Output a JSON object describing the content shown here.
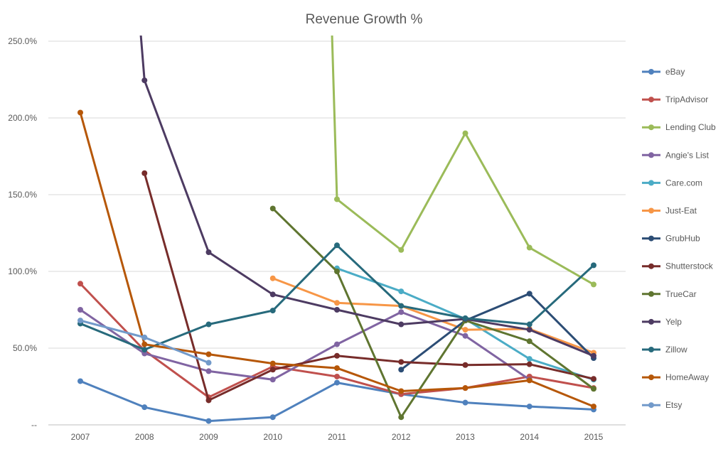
{
  "chart_data": {
    "type": "line",
    "title": "Revenue Growth %",
    "xlabel": "",
    "ylabel": "",
    "categories": [
      "2007",
      "2008",
      "2009",
      "2010",
      "2011",
      "2012",
      "2013",
      "2014",
      "2015"
    ],
    "ylim": [
      0,
      250
    ],
    "yticks": [
      {
        "value": 0,
        "label": "--"
      },
      {
        "value": 50,
        "label": "50.0%"
      },
      {
        "value": 100,
        "label": "100.0%"
      },
      {
        "value": 150,
        "label": "150.0%"
      },
      {
        "value": 200,
        "label": "200.0%"
      },
      {
        "value": 250,
        "label": "250.0%"
      }
    ],
    "grid": "horizontal",
    "legend_position": "right",
    "series": [
      {
        "name": "eBay",
        "color": "#4F81BD",
        "values": [
          28.5,
          11.5,
          2.5,
          5.0,
          27.5,
          20.0,
          14.5,
          12.0,
          10.0
        ]
      },
      {
        "name": "TripAdvisor",
        "color": "#C0504D",
        "values": [
          92.0,
          48.5,
          18.0,
          38.0,
          31.5,
          20.0,
          24.0,
          31.5,
          24.0
        ]
      },
      {
        "name": "Lending Club",
        "color": "#9BBB59",
        "values": [
          null,
          null,
          null,
          null,
          147.0,
          114.0,
          190.0,
          115.5,
          91.5
        ]
      },
      {
        "name": "Angie's List",
        "color": "#8064A2",
        "values": [
          75.0,
          46.5,
          35.0,
          29.5,
          52.5,
          73.5,
          58.0,
          29.5,
          null
        ]
      },
      {
        "name": "Care.com",
        "color": "#4BACC6",
        "values": [
          null,
          null,
          null,
          null,
          102.0,
          87.0,
          69.0,
          43.0,
          29.5
        ]
      },
      {
        "name": "Just-Eat",
        "color": "#F79646",
        "values": [
          null,
          null,
          null,
          95.5,
          79.5,
          77.5,
          62.0,
          62.5,
          47.0
        ]
      },
      {
        "name": "GrubHub",
        "color": "#2C4D75",
        "values": [
          null,
          null,
          null,
          null,
          null,
          36.0,
          68.0,
          85.5,
          43.5
        ]
      },
      {
        "name": "Shutterstock",
        "color": "#772C2A",
        "values": [
          null,
          164.0,
          16.0,
          36.0,
          45.0,
          41.0,
          39.0,
          39.5,
          30.0
        ]
      },
      {
        "name": "TrueCar",
        "color": "#5F7530",
        "values": [
          null,
          null,
          null,
          141.0,
          100.0,
          5.0,
          68.0,
          54.5,
          23.5
        ]
      },
      {
        "name": "Yelp",
        "color": "#4D3B62",
        "values": [
          null,
          224.5,
          112.5,
          85.0,
          75.0,
          65.5,
          69.0,
          62.0,
          45.0
        ]
      },
      {
        "name": "Zillow",
        "color": "#276A7C",
        "values": [
          66.0,
          49.0,
          65.5,
          74.5,
          117.0,
          77.5,
          69.5,
          65.5,
          104.0
        ]
      },
      {
        "name": "HomeAway",
        "color": "#B65708",
        "values": [
          203.5,
          52.5,
          46.0,
          40.0,
          37.0,
          22.0,
          24.0,
          29.0,
          12.0
        ]
      },
      {
        "name": "Etsy",
        "color": "#729ACA",
        "values": [
          68.0,
          57.0,
          40.5,
          null,
          null,
          null,
          null,
          null,
          null
        ]
      }
    ],
    "offscale_lead_in": {
      "Yelp": {
        "from_value": 270,
        "note_value_at": "2007.95"
      },
      "Lending Club": {
        "from_value": 270,
        "note_value_at": "2010.95"
      }
    }
  }
}
